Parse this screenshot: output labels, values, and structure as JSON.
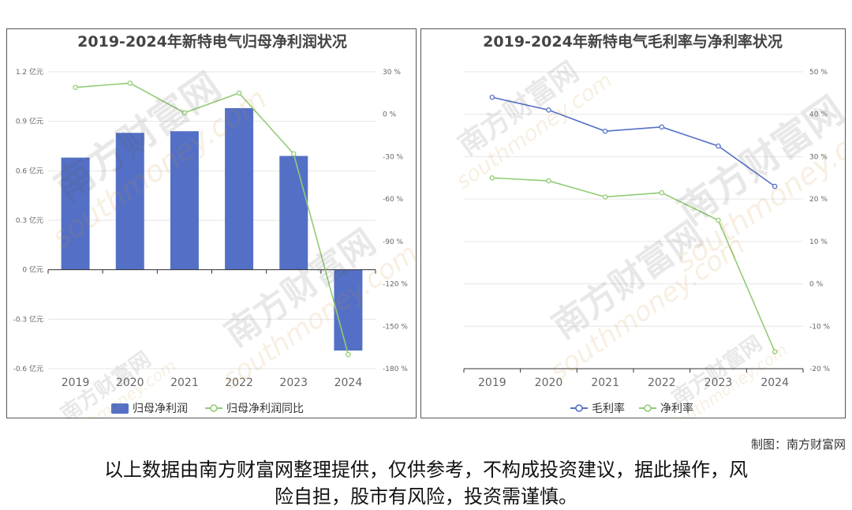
{
  "chart_data": [
    {
      "type": "bar+line",
      "title": "2019-2024年新特电气归母净利润状况",
      "categories": [
        "2019",
        "2020",
        "2021",
        "2022",
        "2023",
        "2024"
      ],
      "series": [
        {
          "name": "归母净利润",
          "type": "bar",
          "axis": "left",
          "values": [
            0.68,
            0.83,
            0.84,
            0.98,
            0.69,
            -0.49
          ]
        },
        {
          "name": "归母净利润同比",
          "type": "line",
          "axis": "right",
          "values": [
            19,
            22,
            1,
            15,
            -28,
            -170
          ]
        }
      ],
      "left_axis": {
        "min": -0.6,
        "max": 1.2,
        "ticks": [
          "1.2 亿元",
          "0.9 亿元",
          "0.6 亿元",
          "0.3 亿元",
          "0 亿元",
          "-0.3 亿元",
          "-0.6 亿元"
        ]
      },
      "right_axis": {
        "min": -180,
        "max": 30,
        "ticks": [
          "30 %",
          "0 %",
          "-30 %",
          "-60 %",
          "-90 %",
          "-120 %",
          "-150 %",
          "-180 %"
        ]
      },
      "legend": "bottom",
      "grid": true,
      "colors": {
        "bar": "#5470c6",
        "line": "#91cc75"
      }
    },
    {
      "type": "line",
      "title": "2019-2024年新特电气毛利率与净利率状况",
      "categories": [
        "2019",
        "2020",
        "2021",
        "2022",
        "2023",
        "2024"
      ],
      "series": [
        {
          "name": "毛利率",
          "values": [
            44,
            41,
            36,
            37,
            32.5,
            23
          ]
        },
        {
          "name": "净利率",
          "values": [
            25,
            24.3,
            20.5,
            21.5,
            15,
            -16
          ]
        }
      ],
      "right_axis": {
        "min": -20,
        "max": 50,
        "ticks": [
          "50 %",
          "40 %",
          "30 %",
          "20 %",
          "10 %",
          "0 %",
          "-10 %",
          "-20 %"
        ]
      },
      "legend": "bottom",
      "grid": true,
      "colors": {
        "gross": "#5470c6",
        "net": "#91cc75"
      }
    }
  ],
  "watermark": {
    "brand": "南方财富网",
    "domain": "southmoney.com"
  },
  "footer": {
    "credit": "制图：南方财富网",
    "disclaimer_line1": "以上数据由南方财富网整理提供，仅供参考，不构成投资建议，据此操作，风",
    "disclaimer_line2": "险自担，股市有风险，投资需谨慎。"
  }
}
